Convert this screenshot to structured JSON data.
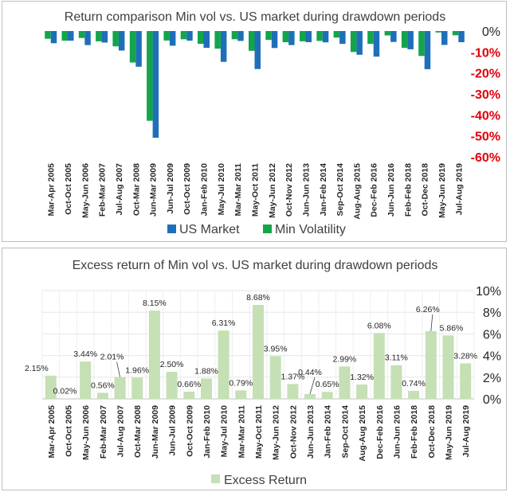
{
  "chart_data": [
    {
      "type": "bar",
      "title": "Return comparison Min vol vs. US market during drawdown periods",
      "categories": [
        "Mar-Apr 2005",
        "Oct-Oct 2005",
        "May-Jun 2006",
        "Feb-Mar 2007",
        "Jul-Aug 2007",
        "Oct-Mar 2008",
        "Jun-Mar 2009",
        "Jun-Jul 2009",
        "Oct-Oct 2009",
        "Jan-Feb 2010",
        "May-Jul 2010",
        "Mar-Mar 2011",
        "May-Oct 2011",
        "May-Jun 2012",
        "Oct-Nov 2012",
        "Jun-Jun 2013",
        "Jan-Feb 2014",
        "Sep-Oct 2014",
        "Aug-Aug 2015",
        "Dec-Feb 2016",
        "Jun-Jun 2016",
        "Feb-Feb 2018",
        "Oct-Dec 2018",
        "May-Jun 2019",
        "Jul-Aug 2019"
      ],
      "series": [
        {
          "name": "US Market",
          "color": "#1f6fb8",
          "values": [
            -5.8,
            -4.6,
            -6.7,
            -5.5,
            -9.3,
            -17.0,
            -50.9,
            -7.0,
            -4.6,
            -8.0,
            -14.7,
            -4.7,
            -18.1,
            -8.1,
            -6.7,
            -5.3,
            -5.4,
            -6.1,
            -11.3,
            -12.2,
            -5.2,
            -8.7,
            -18.2,
            -6.6,
            -5.3
          ]
        },
        {
          "name": "Min Volatility",
          "color": "#13a54a",
          "values": [
            -3.7,
            -4.6,
            -3.3,
            -4.9,
            -7.3,
            -15.0,
            -42.8,
            -4.5,
            -3.9,
            -6.1,
            -8.4,
            -3.9,
            -9.4,
            -4.2,
            -5.3,
            -4.9,
            -4.7,
            -3.1,
            -10.0,
            -6.1,
            -2.1,
            -8.0,
            -11.9,
            -0.7,
            -2.0
          ]
        }
      ],
      "ylim": [
        -60,
        0
      ],
      "yticks": [
        "0%",
        "-10%",
        "-20%",
        "-30%",
        "-40%",
        "-50%",
        "-60%"
      ],
      "xlabel": "",
      "ylabel": "",
      "legend_position": "bottom"
    },
    {
      "type": "bar",
      "title": "Excess return of Min vol vs. US market during drawdown periods",
      "categories": [
        "Mar-Apr 2005",
        "Oct-Oct 2005",
        "May-Jun 2006",
        "Feb-Mar 2007",
        "Jul-Aug 2007",
        "Oct-Mar 2008",
        "Jun-Mar 2009",
        "Jun-Jul 2009",
        "Oct-Oct 2009",
        "Jan-Feb 2010",
        "May-Jul 2010",
        "Mar-Mar 2011",
        "May-Oct 2011",
        "May-Jun 2012",
        "Oct-Nov 2012",
        "Jun-Jun 2013",
        "Jan-Feb 2014",
        "Sep-Oct 2014",
        "Aug-Aug 2015",
        "Dec-Feb 2016",
        "Jun-Jun 2016",
        "Feb-Feb 2018",
        "Oct-Dec 2018",
        "May-Jun 2019",
        "Jul-Aug 2019"
      ],
      "series": [
        {
          "name": "Excess Return",
          "color": "#c5e0b4",
          "values": [
            2.15,
            0.02,
            3.44,
            0.56,
            2.01,
            1.96,
            8.15,
            2.5,
            0.66,
            1.88,
            6.31,
            0.79,
            8.68,
            3.95,
            1.37,
            0.44,
            0.65,
            2.99,
            1.32,
            6.08,
            3.11,
            0.74,
            6.26,
            5.86,
            3.28
          ]
        }
      ],
      "labels": [
        "2.15%",
        "0.02%",
        "3.44%",
        "0.56%",
        "2.01%",
        "1.96%",
        "8.15%",
        "2.50%",
        "0.66%",
        "1.88%",
        "6.31%",
        "0.79%",
        "8.68%",
        "3.95%",
        "1.37%",
        "0.44%",
        "0.65%",
        "2.99%",
        "1.32%",
        "6.08%",
        "3.11%",
        "0.74%",
        "6.26%",
        "5.86%",
        "3.28%"
      ],
      "ylim": [
        0,
        10
      ],
      "yticks": [
        "10%",
        "8%",
        "6%",
        "4%",
        "2%",
        "0%"
      ],
      "xlabel": "",
      "ylabel": "",
      "legend_position": "bottom"
    }
  ]
}
